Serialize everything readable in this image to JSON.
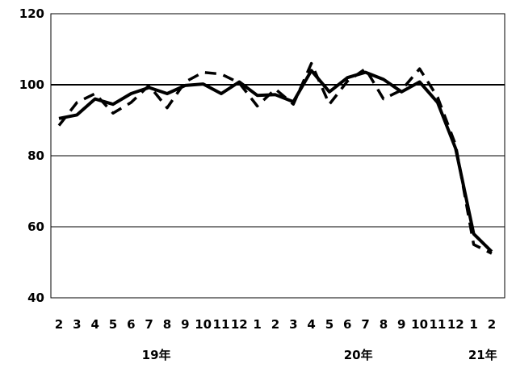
{
  "chart_data": {
    "type": "line",
    "title": "",
    "xlabel": "",
    "ylabel": "",
    "ylim": [
      40,
      120
    ],
    "yticks": [
      40,
      60,
      80,
      100,
      120
    ],
    "reference_line": 100,
    "grid": true,
    "legend": "none",
    "categories": [
      "2",
      "3",
      "4",
      "5",
      "6",
      "7",
      "8",
      "9",
      "10",
      "11",
      "12",
      "1",
      "2",
      "3",
      "4",
      "5",
      "6",
      "7",
      "8",
      "9",
      "10",
      "11",
      "12",
      "1",
      "2"
    ],
    "year_labels": [
      {
        "label": "19年",
        "index": 5.4
      },
      {
        "label": "20年",
        "index": 16.6
      },
      {
        "label": "21年",
        "index": 23.5
      }
    ],
    "series": [
      {
        "style": "solid",
        "color": "#000000",
        "values": [
          90.5,
          91.5,
          96.0,
          94.5,
          97.5,
          99.2,
          97.5,
          99.8,
          100.2,
          97.5,
          100.8,
          97.0,
          97.2,
          95.2,
          104.0,
          98.0,
          102.0,
          103.5,
          101.5,
          98.0,
          100.8,
          95.0,
          82.0,
          58.0,
          53.0
        ]
      },
      {
        "style": "dashed",
        "color": "#000000",
        "values": [
          88.5,
          95.0,
          97.5,
          92.0,
          95.0,
          99.8,
          93.5,
          100.8,
          103.5,
          103.0,
          100.5,
          94.0,
          98.8,
          94.5,
          106.0,
          94.5,
          101.0,
          104.5,
          96.0,
          98.5,
          104.5,
          96.5,
          83.0,
          55.0,
          52.5
        ]
      }
    ]
  }
}
